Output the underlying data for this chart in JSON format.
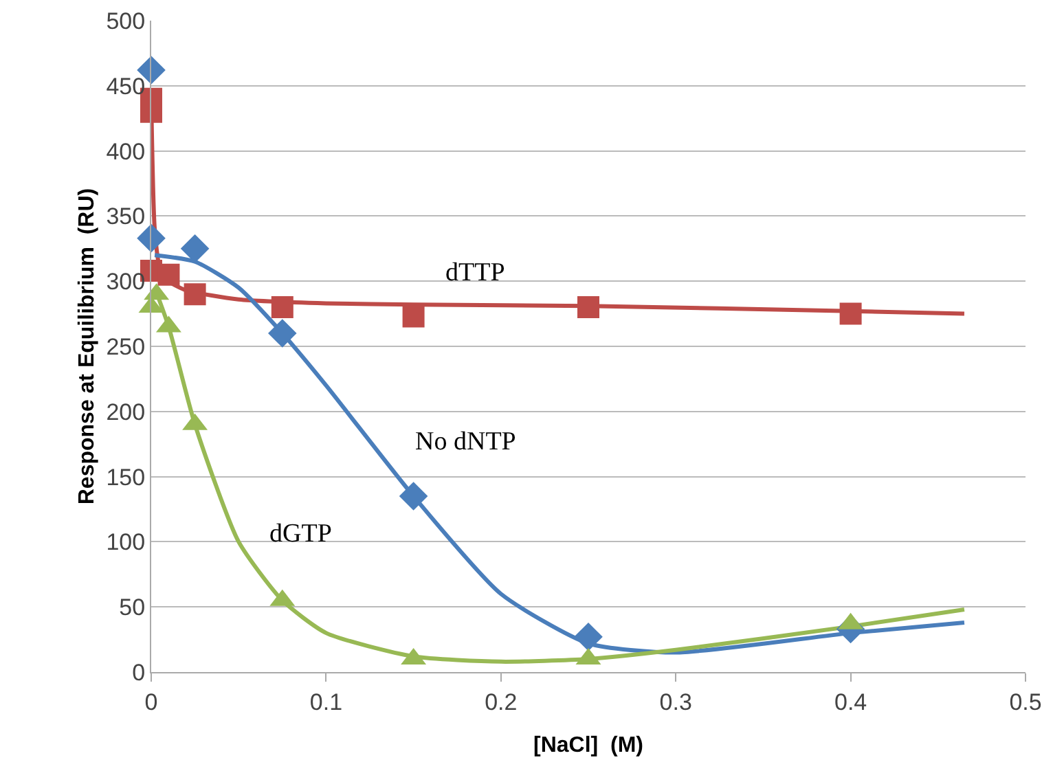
{
  "chart_data": {
    "type": "scatter",
    "xlabel": "[NaCl]  (M)",
    "ylabel": "Response at Equilibrium  (RU)",
    "xlim": [
      0,
      0.5
    ],
    "xticks": [
      0,
      0.1,
      0.2,
      0.3,
      0.4,
      0.5
    ],
    "ylim": [
      0,
      500
    ],
    "yticks": [
      0,
      50,
      100,
      150,
      200,
      250,
      300,
      350,
      400,
      450,
      500
    ],
    "grid": "y",
    "series": [
      {
        "type": "line",
        "marker": "none",
        "color": "#be4b48",
        "x": [
          0,
          0.002,
          0.005,
          0.01,
          0.02,
          0.05,
          0.1,
          0.15,
          0.25,
          0.4,
          0.465
        ],
        "values": [
          440,
          340,
          310,
          300,
          293,
          286,
          283,
          282,
          281,
          277,
          275
        ]
      },
      {
        "type": "line",
        "marker": "none",
        "color": "#4a7ebb",
        "x": [
          0.002,
          0.025,
          0.05,
          0.075,
          0.1,
          0.15,
          0.2,
          0.25,
          0.3,
          0.4,
          0.465
        ],
        "values": [
          320,
          315,
          295,
          260,
          220,
          135,
          60,
          22,
          15,
          30,
          38
        ]
      },
      {
        "type": "line",
        "marker": "none",
        "color": "#98b954",
        "x": [
          0.002,
          0.01,
          0.025,
          0.05,
          0.075,
          0.1,
          0.15,
          0.2,
          0.25,
          0.3,
          0.4,
          0.465
        ],
        "values": [
          295,
          265,
          190,
          100,
          55,
          30,
          12,
          8,
          10,
          17,
          35,
          48
        ]
      },
      {
        "name": "dTTP",
        "marker": "square",
        "color": "#be4b48",
        "x": [
          0,
          0,
          0,
          0.01,
          0.025,
          0.075,
          0.15,
          0.25,
          0.4
        ],
        "values": [
          440,
          430,
          308,
          305,
          290,
          280,
          273,
          280,
          275
        ]
      },
      {
        "name": "No dNTP",
        "marker": "diamond",
        "color": "#4a7ebb",
        "x": [
          0,
          0,
          0.025,
          0.075,
          0.15,
          0.25,
          0.4
        ],
        "values": [
          462,
          333,
          325,
          260,
          135,
          27,
          33
        ]
      },
      {
        "name": "dGTP",
        "marker": "triangle",
        "color": "#98b954",
        "x": [
          0,
          0.003,
          0.01,
          0.025,
          0.075,
          0.15,
          0.25,
          0.4
        ],
        "values": [
          280,
          290,
          265,
          190,
          55,
          10,
          10,
          37
        ]
      }
    ]
  }
}
